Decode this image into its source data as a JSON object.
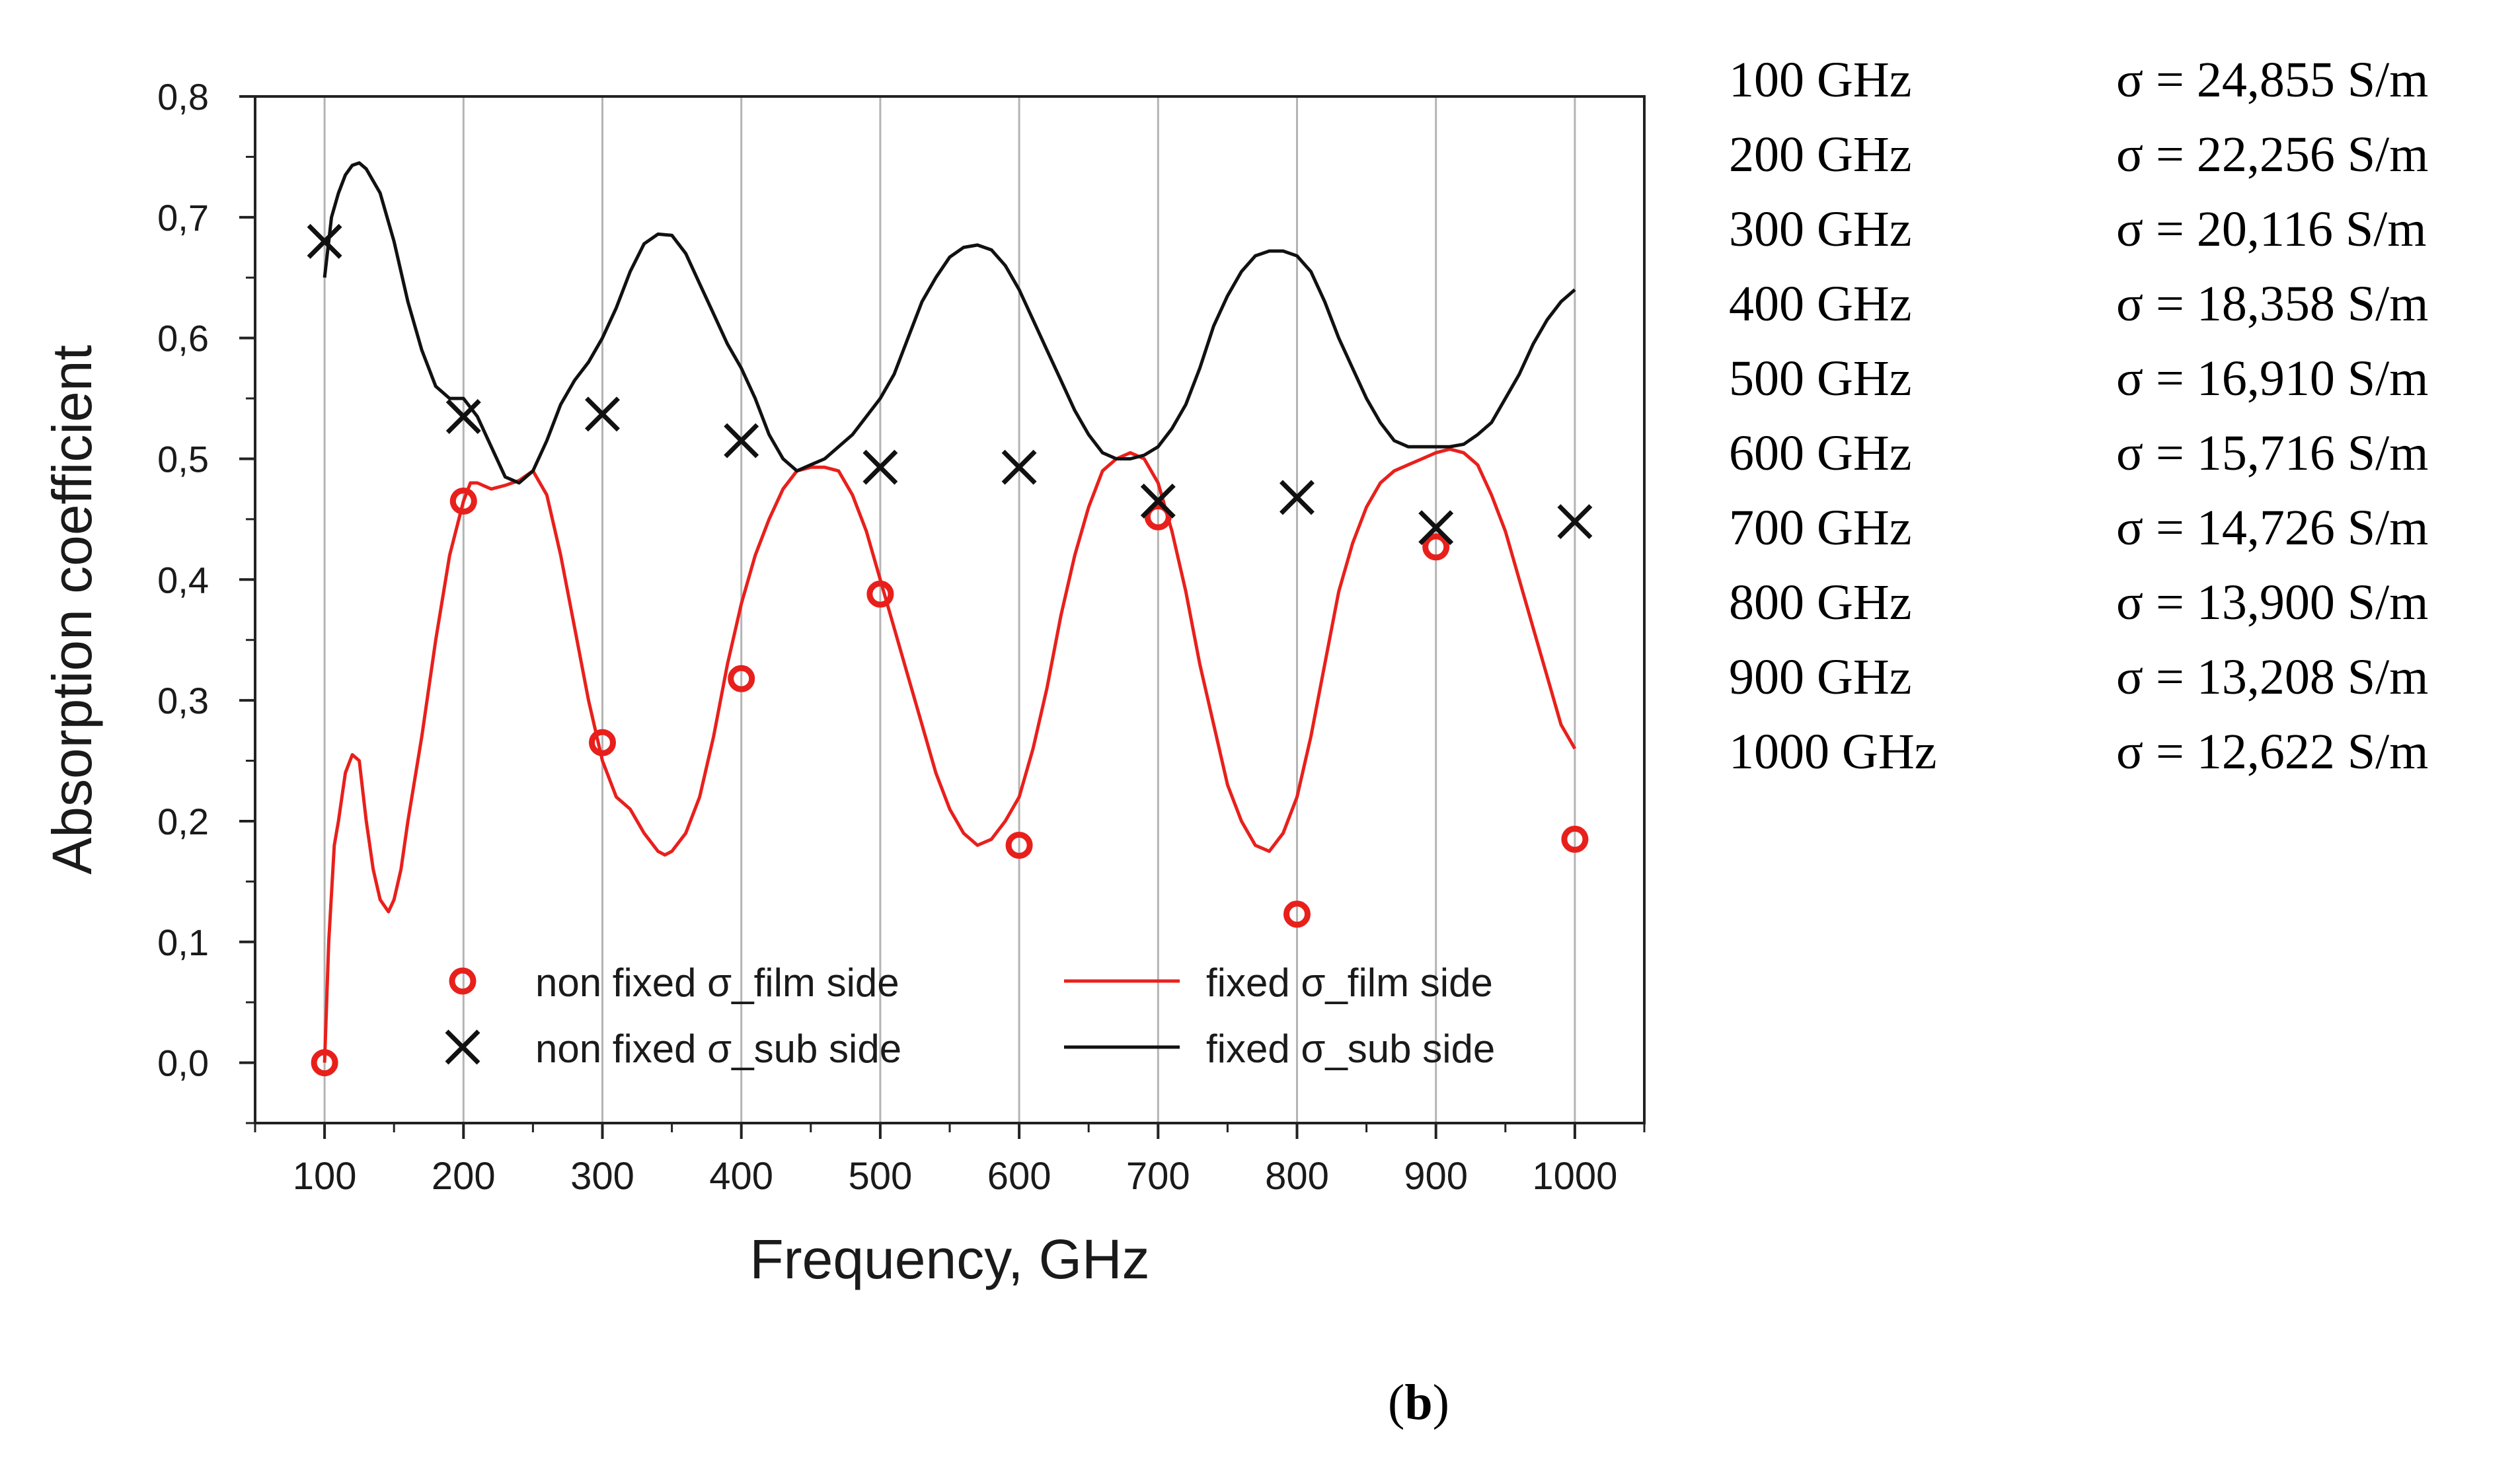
{
  "chart_data": {
    "type": "line",
    "title": "",
    "xlabel": "Frequency, GHz",
    "ylabel": "Absorption coefficient",
    "xlim": [
      50,
      1050
    ],
    "ylim": [
      -0.05,
      0.8
    ],
    "x_ticks": [
      100,
      200,
      300,
      400,
      500,
      600,
      700,
      800,
      900,
      1000
    ],
    "x_tick_labels": [
      "100",
      "200",
      "300",
      "400",
      "500",
      "600",
      "700",
      "800",
      "900",
      "1000"
    ],
    "y_ticks": [
      0.0,
      0.1,
      0.2,
      0.3,
      0.4,
      0.5,
      0.6,
      0.7,
      0.8
    ],
    "y_tick_labels": [
      "0,0",
      "0,1",
      "0,2",
      "0,3",
      "0,4",
      "0,5",
      "0,6",
      "0,7",
      "0,8"
    ],
    "grid": "vertical",
    "legend_position": "bottom",
    "series": [
      {
        "name": "non fixed σ_film side",
        "kind": "markers",
        "marker": "circle",
        "color": "#e8201c",
        "x": [
          100,
          200,
          300,
          400,
          500,
          600,
          700,
          800,
          900,
          1000
        ],
        "y": [
          0.0,
          0.465,
          0.265,
          0.318,
          0.388,
          0.18,
          0.452,
          0.123,
          0.427,
          0.185
        ]
      },
      {
        "name": "non fixed σ_sub  side",
        "kind": "markers",
        "marker": "x",
        "color": "#111111",
        "x": [
          100,
          200,
          300,
          400,
          500,
          600,
          700,
          800,
          900,
          1000
        ],
        "y": [
          0.68,
          0.535,
          0.537,
          0.515,
          0.493,
          0.493,
          0.465,
          0.468,
          0.443,
          0.448
        ]
      },
      {
        "name": "fixed σ_film side",
        "kind": "line",
        "color": "#e8201c",
        "x": [
          100,
          103,
          107,
          110,
          115,
          120,
          125,
          130,
          135,
          140,
          146,
          150,
          155,
          160,
          170,
          180,
          190,
          200,
          205,
          210,
          220,
          230,
          240,
          250,
          260,
          270,
          280,
          290,
          300,
          310,
          320,
          330,
          340,
          345,
          350,
          360,
          370,
          380,
          390,
          400,
          410,
          420,
          430,
          440,
          450,
          460,
          470,
          480,
          490,
          500,
          510,
          520,
          530,
          540,
          550,
          560,
          570,
          580,
          590,
          600,
          610,
          620,
          630,
          640,
          650,
          660,
          670,
          680,
          690,
          700,
          710,
          720,
          730,
          740,
          750,
          760,
          770,
          780,
          790,
          800,
          810,
          820,
          830,
          840,
          850,
          860,
          870,
          880,
          890,
          900,
          910,
          920,
          930,
          940,
          950,
          960,
          970,
          980,
          990,
          1000
        ],
        "y": [
          0.0,
          0.1,
          0.18,
          0.2,
          0.24,
          0.255,
          0.25,
          0.2,
          0.16,
          0.135,
          0.125,
          0.135,
          0.16,
          0.2,
          0.27,
          0.35,
          0.42,
          0.465,
          0.48,
          0.48,
          0.475,
          0.478,
          0.482,
          0.49,
          0.47,
          0.42,
          0.36,
          0.3,
          0.25,
          0.22,
          0.21,
          0.19,
          0.175,
          0.172,
          0.175,
          0.19,
          0.22,
          0.27,
          0.33,
          0.38,
          0.42,
          0.45,
          0.475,
          0.49,
          0.493,
          0.493,
          0.49,
          0.47,
          0.44,
          0.4,
          0.36,
          0.32,
          0.28,
          0.24,
          0.21,
          0.19,
          0.18,
          0.185,
          0.2,
          0.22,
          0.26,
          0.31,
          0.37,
          0.42,
          0.46,
          0.49,
          0.5,
          0.505,
          0.5,
          0.48,
          0.44,
          0.39,
          0.33,
          0.28,
          0.23,
          0.2,
          0.18,
          0.175,
          0.19,
          0.22,
          0.27,
          0.33,
          0.39,
          0.43,
          0.46,
          0.48,
          0.49,
          0.495,
          0.5,
          0.505,
          0.508,
          0.505,
          0.495,
          0.47,
          0.44,
          0.4,
          0.36,
          0.32,
          0.28,
          0.26
        ]
      },
      {
        "name": "fixed σ_sub  side",
        "kind": "line",
        "color": "#111111",
        "x": [
          100,
          105,
          110,
          115,
          120,
          125,
          130,
          140,
          150,
          160,
          170,
          180,
          190,
          200,
          210,
          220,
          230,
          240,
          250,
          260,
          270,
          280,
          290,
          300,
          310,
          320,
          330,
          340,
          350,
          360,
          370,
          380,
          390,
          400,
          410,
          420,
          430,
          440,
          450,
          460,
          470,
          480,
          490,
          500,
          510,
          520,
          530,
          540,
          550,
          560,
          570,
          580,
          590,
          600,
          610,
          620,
          630,
          640,
          650,
          660,
          670,
          680,
          690,
          700,
          710,
          720,
          730,
          740,
          750,
          760,
          770,
          780,
          790,
          800,
          810,
          820,
          830,
          840,
          850,
          860,
          870,
          880,
          890,
          900,
          910,
          920,
          930,
          940,
          950,
          960,
          970,
          980,
          990,
          1000
        ],
        "y": [
          0.65,
          0.7,
          0.72,
          0.735,
          0.743,
          0.745,
          0.74,
          0.72,
          0.68,
          0.63,
          0.59,
          0.56,
          0.55,
          0.55,
          0.535,
          0.51,
          0.485,
          0.48,
          0.49,
          0.515,
          0.545,
          0.565,
          0.58,
          0.6,
          0.625,
          0.655,
          0.678,
          0.686,
          0.685,
          0.67,
          0.645,
          0.62,
          0.595,
          0.575,
          0.55,
          0.52,
          0.5,
          0.49,
          0.495,
          0.5,
          0.51,
          0.52,
          0.535,
          0.55,
          0.57,
          0.6,
          0.63,
          0.65,
          0.667,
          0.675,
          0.677,
          0.673,
          0.66,
          0.64,
          0.615,
          0.59,
          0.565,
          0.54,
          0.52,
          0.505,
          0.5,
          0.5,
          0.503,
          0.51,
          0.525,
          0.545,
          0.575,
          0.61,
          0.635,
          0.655,
          0.668,
          0.672,
          0.672,
          0.668,
          0.655,
          0.63,
          0.6,
          0.575,
          0.55,
          0.53,
          0.515,
          0.51,
          0.51,
          0.51,
          0.51,
          0.512,
          0.52,
          0.53,
          0.55,
          0.57,
          0.595,
          0.615,
          0.63,
          0.64
        ]
      }
    ]
  },
  "sigma_table": {
    "rows": [
      {
        "frequency": "100 GHz",
        "sigma": "σ = 24,855 S/m"
      },
      {
        "frequency": "200 GHz",
        "sigma": "σ = 22,256 S/m"
      },
      {
        "frequency": "300 GHz",
        "sigma": "σ = 20,116 S/m"
      },
      {
        "frequency": "400 GHz",
        "sigma": "σ = 18,358 S/m"
      },
      {
        "frequency": "500 GHz",
        "sigma": "σ = 16,910 S/m"
      },
      {
        "frequency": "600 GHz",
        "sigma": "σ = 15,716 S/m"
      },
      {
        "frequency": "700 GHz",
        "sigma": "σ = 14,726 S/m"
      },
      {
        "frequency": "800 GHz",
        "sigma": "σ = 13,900 S/m"
      },
      {
        "frequency": "900 GHz",
        "sigma": "σ = 13,208 S/m"
      },
      {
        "frequency": "1000 GHz",
        "sigma": "σ = 12,622 S/m"
      }
    ]
  },
  "caption": {
    "open": "(",
    "letter": "b",
    "close": ")"
  }
}
